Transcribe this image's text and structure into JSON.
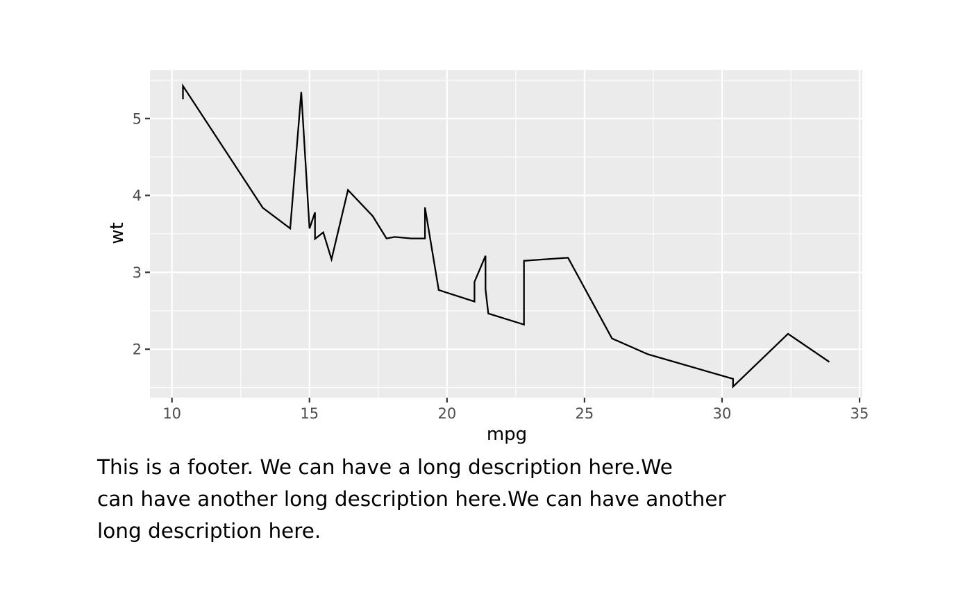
{
  "chart_data": {
    "type": "line",
    "x_label": "mpg",
    "y_label": "wt",
    "xlim": [
      9.2,
      35.1
    ],
    "ylim": [
      1.37,
      5.63
    ],
    "x_ticks": [
      10,
      15,
      20,
      25,
      30,
      35
    ],
    "y_ticks": [
      2,
      3,
      4,
      5
    ],
    "grid": true,
    "panel_background": "#ebebeb",
    "grid_color": "#ffffff",
    "line_color": "#000000",
    "series": [
      {
        "x": [
          10.4,
          10.4,
          13.3,
          14.3,
          14.7,
          15.0,
          15.2,
          15.2,
          15.5,
          15.8,
          16.4,
          17.3,
          17.8,
          18.1,
          18.7,
          19.2,
          19.2,
          19.7,
          21.0,
          21.0,
          21.4,
          21.4,
          21.5,
          22.8,
          22.8,
          24.4,
          26.0,
          27.3,
          30.4,
          30.4,
          32.4,
          33.9
        ],
        "y": [
          5.25,
          5.424,
          3.84,
          3.57,
          5.345,
          3.57,
          3.78,
          3.435,
          3.52,
          3.17,
          4.07,
          3.73,
          3.44,
          3.46,
          3.44,
          3.44,
          3.845,
          2.77,
          2.62,
          2.875,
          3.215,
          2.78,
          2.465,
          2.32,
          3.15,
          3.19,
          2.14,
          1.935,
          1.615,
          1.513,
          2.2,
          1.835
        ]
      }
    ]
  },
  "footer": {
    "line1": "This is a footer. We can have a long description here.We",
    "line2": "can have another long description here.We can have another",
    "line3": "long description here."
  }
}
